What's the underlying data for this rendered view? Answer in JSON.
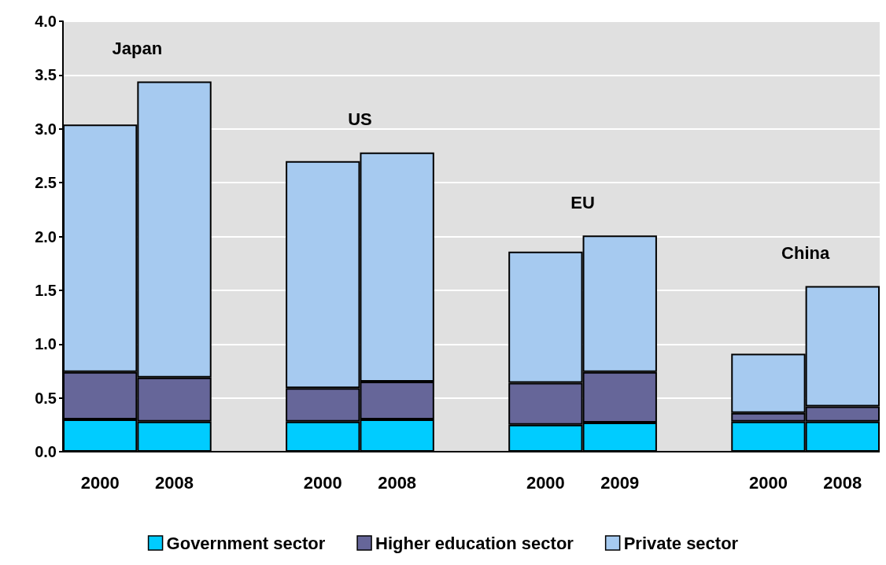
{
  "chart_data": {
    "type": "bar",
    "stacked": true,
    "categories": [
      "2000",
      "2008",
      null,
      "2000",
      "2008",
      null,
      "2000",
      "2009",
      null,
      "2000",
      "2008"
    ],
    "series": [
      {
        "name": "Government sector",
        "color": "#00ccff",
        "values": [
          0.3,
          0.28,
          null,
          0.28,
          0.3,
          null,
          0.25,
          0.27,
          null,
          0.28,
          0.28
        ]
      },
      {
        "name": "Higher education sector",
        "color": "#666699",
        "values": [
          0.44,
          0.41,
          null,
          0.31,
          0.35,
          null,
          0.39,
          0.47,
          null,
          0.08,
          0.14
        ]
      },
      {
        "name": "Private sector",
        "color": "#a6caf0",
        "values": [
          2.3,
          2.75,
          null,
          2.11,
          2.13,
          null,
          1.22,
          1.27,
          null,
          0.55,
          1.12
        ]
      }
    ],
    "annotations": [
      "Japan",
      "US",
      "EU",
      "China"
    ],
    "ylim": [
      0,
      4
    ],
    "yticks": [
      {
        "value": 0,
        "label": "0.0"
      },
      {
        "value": 0.5,
        "label": "0.5"
      },
      {
        "value": 1,
        "label": "1.0"
      },
      {
        "value": 1.5,
        "label": "1.5"
      },
      {
        "value": 2,
        "label": "2.0"
      },
      {
        "value": 2.5,
        "label": "2.5"
      },
      {
        "value": 3,
        "label": "3.0"
      },
      {
        "value": 3.5,
        "label": "3.5"
      },
      {
        "value": 4,
        "label": "4.0"
      }
    ],
    "grid": "y",
    "legend": "bottom"
  }
}
